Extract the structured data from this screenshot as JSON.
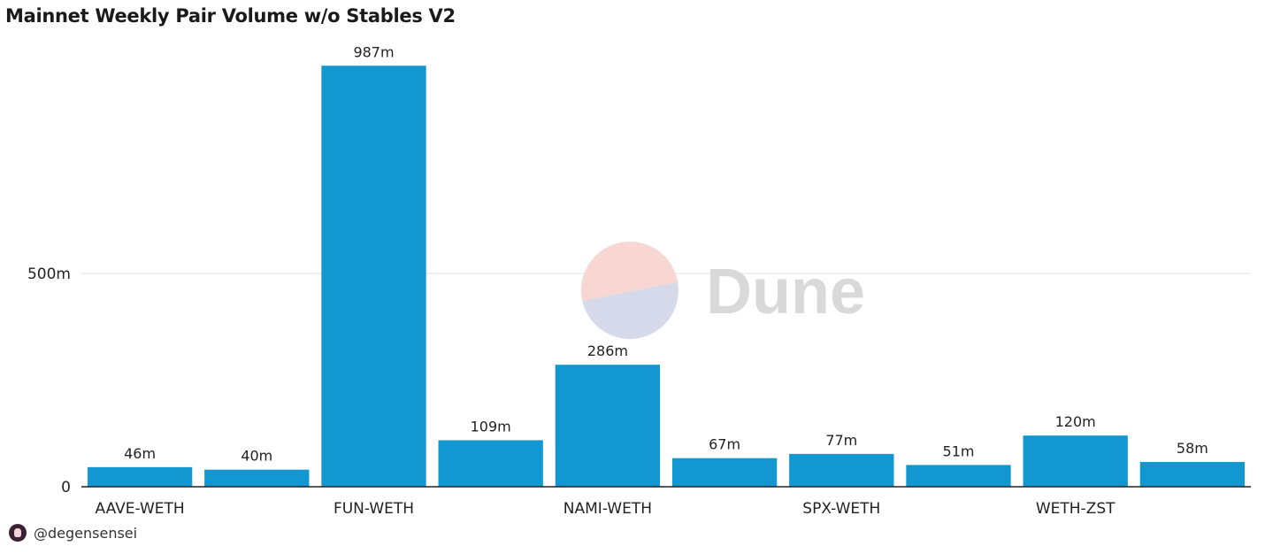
{
  "title": "Mainnet Weekly Pair Volume w/o Stables V2",
  "watermark": {
    "text": "Dune",
    "logo_colors": [
      "#f8d6d1",
      "#d6d9ea"
    ]
  },
  "footer": {
    "handle": "@degensensei",
    "avatar_icon": "avatar-icon"
  },
  "colors": {
    "bar": "#1297d0",
    "grid": "#e2e2e2",
    "axis": "#222222",
    "text": "#222222",
    "watermark_text": "#d9d9d9"
  },
  "chart_data": {
    "type": "bar",
    "categories": [
      "AAVE-WETH",
      "",
      "FUN-WETH",
      "",
      "NAMI-WETH",
      "",
      "SPX-WETH",
      "",
      "WETH-ZST",
      ""
    ],
    "values": [
      46000000,
      40000000,
      987000000,
      109000000,
      286000000,
      67000000,
      77000000,
      51000000,
      120000000,
      58000000
    ],
    "data_labels": [
      "46m",
      "40m",
      "987m",
      "109m",
      "286m",
      "67m",
      "77m",
      "51m",
      "120m",
      "58m"
    ],
    "yticks": [
      {
        "value": 0,
        "label": "0"
      },
      {
        "value": 500000000,
        "label": "500m"
      }
    ],
    "ylim": [
      0,
      1000000000
    ],
    "xlabel": "",
    "ylabel": "",
    "grid": true,
    "legend": false
  }
}
